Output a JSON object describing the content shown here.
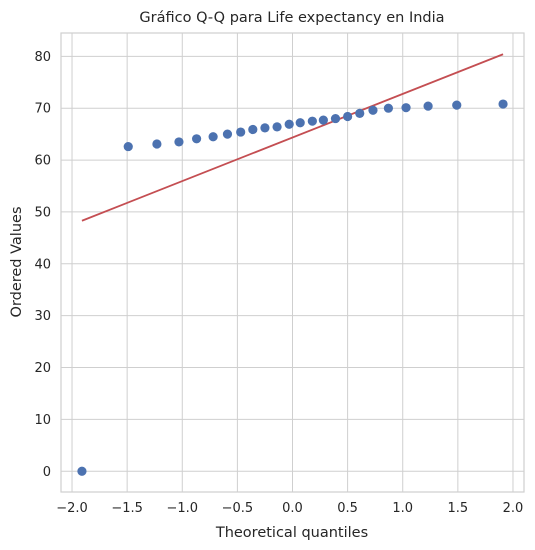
{
  "chart_data": {
    "type": "scatter",
    "title": "Gráfico Q-Q para Life expectancy en India",
    "xlabel": "Theoretical quantiles",
    "ylabel": "Ordered Values",
    "xlim": [
      -2.1,
      2.1
    ],
    "ylim": [
      -4,
      84.5
    ],
    "xticks": [
      -2.0,
      -1.5,
      -1.0,
      -0.5,
      0.0,
      0.5,
      1.0,
      1.5,
      2.0
    ],
    "xtick_labels": [
      "−2.0",
      "−1.5",
      "−1.0",
      "−0.5",
      "0.0",
      "0.5",
      "1.0",
      "1.5",
      "2.0"
    ],
    "yticks": [
      0,
      10,
      20,
      30,
      40,
      50,
      60,
      70,
      80
    ],
    "ytick_labels": [
      "0",
      "10",
      "20",
      "30",
      "40",
      "50",
      "60",
      "70",
      "80"
    ],
    "grid": true,
    "points": {
      "color": "#4c72b0",
      "x": [
        -1.91,
        -1.49,
        -1.23,
        -1.03,
        -0.87,
        -0.72,
        -0.59,
        -0.47,
        -0.36,
        -0.25,
        -0.14,
        -0.03,
        0.07,
        0.18,
        0.28,
        0.39,
        0.5,
        0.61,
        0.73,
        0.87,
        1.03,
        1.23,
        1.49,
        1.91
      ],
      "y": [
        0.0,
        62.6,
        63.1,
        63.5,
        64.1,
        64.5,
        65.0,
        65.4,
        65.9,
        66.2,
        66.4,
        66.9,
        67.2,
        67.5,
        67.7,
        68.0,
        68.4,
        69.0,
        69.6,
        70.0,
        70.1,
        70.4,
        70.6,
        70.8
      ]
    },
    "fit_line": {
      "color": "#c44e52",
      "x": [
        -1.91,
        1.91
      ],
      "y": [
        48.3,
        80.4
      ]
    }
  }
}
